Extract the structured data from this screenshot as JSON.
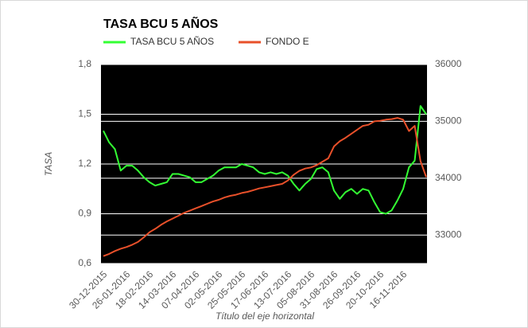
{
  "chart_data": {
    "type": "line",
    "title": "TASA BCU 5 AÑOS",
    "x_label": "Título del eje horizontal",
    "y_label": "TASA",
    "categories": [
      "30-12-2015",
      null,
      null,
      null,
      "26-01-2016",
      null,
      null,
      null,
      "18-02-2016",
      null,
      null,
      null,
      "14-03-2016",
      null,
      null,
      null,
      "07-04-2016",
      null,
      null,
      null,
      "02-05-2016",
      null,
      null,
      null,
      "25-05-2016",
      null,
      null,
      null,
      "17-06-2016",
      null,
      null,
      null,
      "13-07-2016",
      null,
      null,
      null,
      "05-08-2016",
      null,
      null,
      null,
      "31-08-2016",
      null,
      null,
      null,
      "26-09-2016",
      null,
      null,
      null,
      "20-10-2016",
      null,
      null,
      null,
      "16-11-2016",
      null,
      null,
      null,
      null
    ],
    "series": [
      {
        "name": "TASA BCU 5 AÑOS",
        "color": "#33ff33",
        "values": [
          1.4,
          1.33,
          1.29,
          1.16,
          1.19,
          1.19,
          1.16,
          1.12,
          1.09,
          1.07,
          1.08,
          1.09,
          1.14,
          1.14,
          1.13,
          1.12,
          1.09,
          1.09,
          1.11,
          1.13,
          1.16,
          1.18,
          1.18,
          1.18,
          1.2,
          1.19,
          1.18,
          1.15,
          1.14,
          1.15,
          1.14,
          1.15,
          1.13,
          1.08,
          1.04,
          1.08,
          1.11,
          1.17,
          1.18,
          1.15,
          1.04,
          0.99,
          1.03,
          1.05,
          1.02,
          1.05,
          1.04,
          0.97,
          0.91,
          0.9,
          0.92,
          0.98,
          1.05,
          1.18,
          1.22,
          1.55,
          1.5
        ]
      },
      {
        "name": "FONDO E",
        "color": "#e8502a",
        "axis": "y2",
        "values": [
          32630,
          32670,
          32720,
          32760,
          32790,
          32830,
          32880,
          32960,
          33050,
          33110,
          33180,
          33240,
          33290,
          33340,
          33390,
          33430,
          33470,
          33510,
          33550,
          33590,
          33620,
          33660,
          33690,
          33710,
          33740,
          33760,
          33790,
          33820,
          33840,
          33860,
          33880,
          33900,
          33960,
          34060,
          34130,
          34170,
          34190,
          34230,
          34290,
          34350,
          34560,
          34650,
          34710,
          34780,
          34850,
          34920,
          34940,
          35000,
          35010,
          35030,
          35040,
          35060,
          35030,
          34830,
          34920,
          34300,
          34020
        ]
      }
    ],
    "ylim": [
      0.6,
      1.8
    ],
    "yticks": [
      {
        "value": 0.6,
        "label": "0,6"
      },
      {
        "value": 0.9,
        "label": "0,9"
      },
      {
        "value": 1.2,
        "label": "1,2"
      },
      {
        "value": 1.5,
        "label": "1,5"
      },
      {
        "value": 1.8,
        "label": "1,8"
      }
    ],
    "y2lim": [
      32500,
      36000
    ],
    "y2ticks": [
      33000,
      34000,
      35000,
      36000
    ],
    "grid": true,
    "legend": "top",
    "plot_background": "#000000"
  }
}
